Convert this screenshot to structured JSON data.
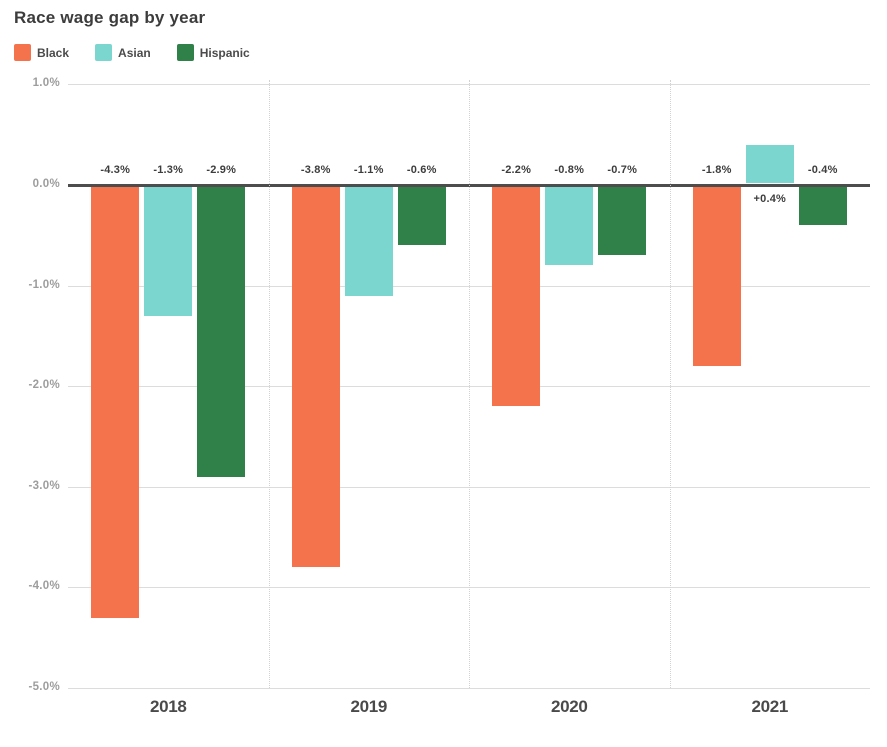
{
  "title": "Race wage gap by year",
  "legend": {
    "items": [
      {
        "label": "Black",
        "color": "#F4734D"
      },
      {
        "label": "Asian",
        "color": "#7BD6D0"
      },
      {
        "label": "Hispanic",
        "color": "#2F8149"
      }
    ]
  },
  "chart_data": {
    "type": "bar",
    "title": "Race wage gap by year",
    "categories": [
      "2018",
      "2019",
      "2020",
      "2021"
    ],
    "series": [
      {
        "name": "Black",
        "color": "#F4734D",
        "values": [
          -4.3,
          -3.8,
          -2.2,
          -1.8
        ],
        "labels": [
          "-4.3%",
          "-3.8%",
          "-2.2%",
          "-1.8%"
        ]
      },
      {
        "name": "Asian",
        "color": "#7BD6D0",
        "values": [
          -1.3,
          -1.1,
          -0.8,
          0.4
        ],
        "labels": [
          "-1.3%",
          "-1.1%",
          "-0.8%",
          "+0.4%"
        ]
      },
      {
        "name": "Hispanic",
        "color": "#2F8149",
        "values": [
          -2.9,
          -0.6,
          -0.7,
          -0.4
        ],
        "labels": [
          "-2.9%",
          "-0.6%",
          "-0.7%",
          "-0.4%"
        ]
      }
    ],
    "y_ticks": [
      {
        "value": 1,
        "label": "1.0%"
      },
      {
        "value": 0,
        "label": "0.0%"
      },
      {
        "value": -1,
        "label": "-1.0%"
      },
      {
        "value": -2,
        "label": "-2.0%"
      },
      {
        "value": -3,
        "label": "-3.0%"
      },
      {
        "value": -4,
        "label": "-4.0%"
      },
      {
        "value": -5,
        "label": "-5.0%"
      }
    ],
    "ylim": [
      -5,
      1
    ],
    "grid": true,
    "zero_line_color": "#4d4d4d",
    "gridline_color": "#dcdcdc",
    "legend_position": "top-left"
  }
}
